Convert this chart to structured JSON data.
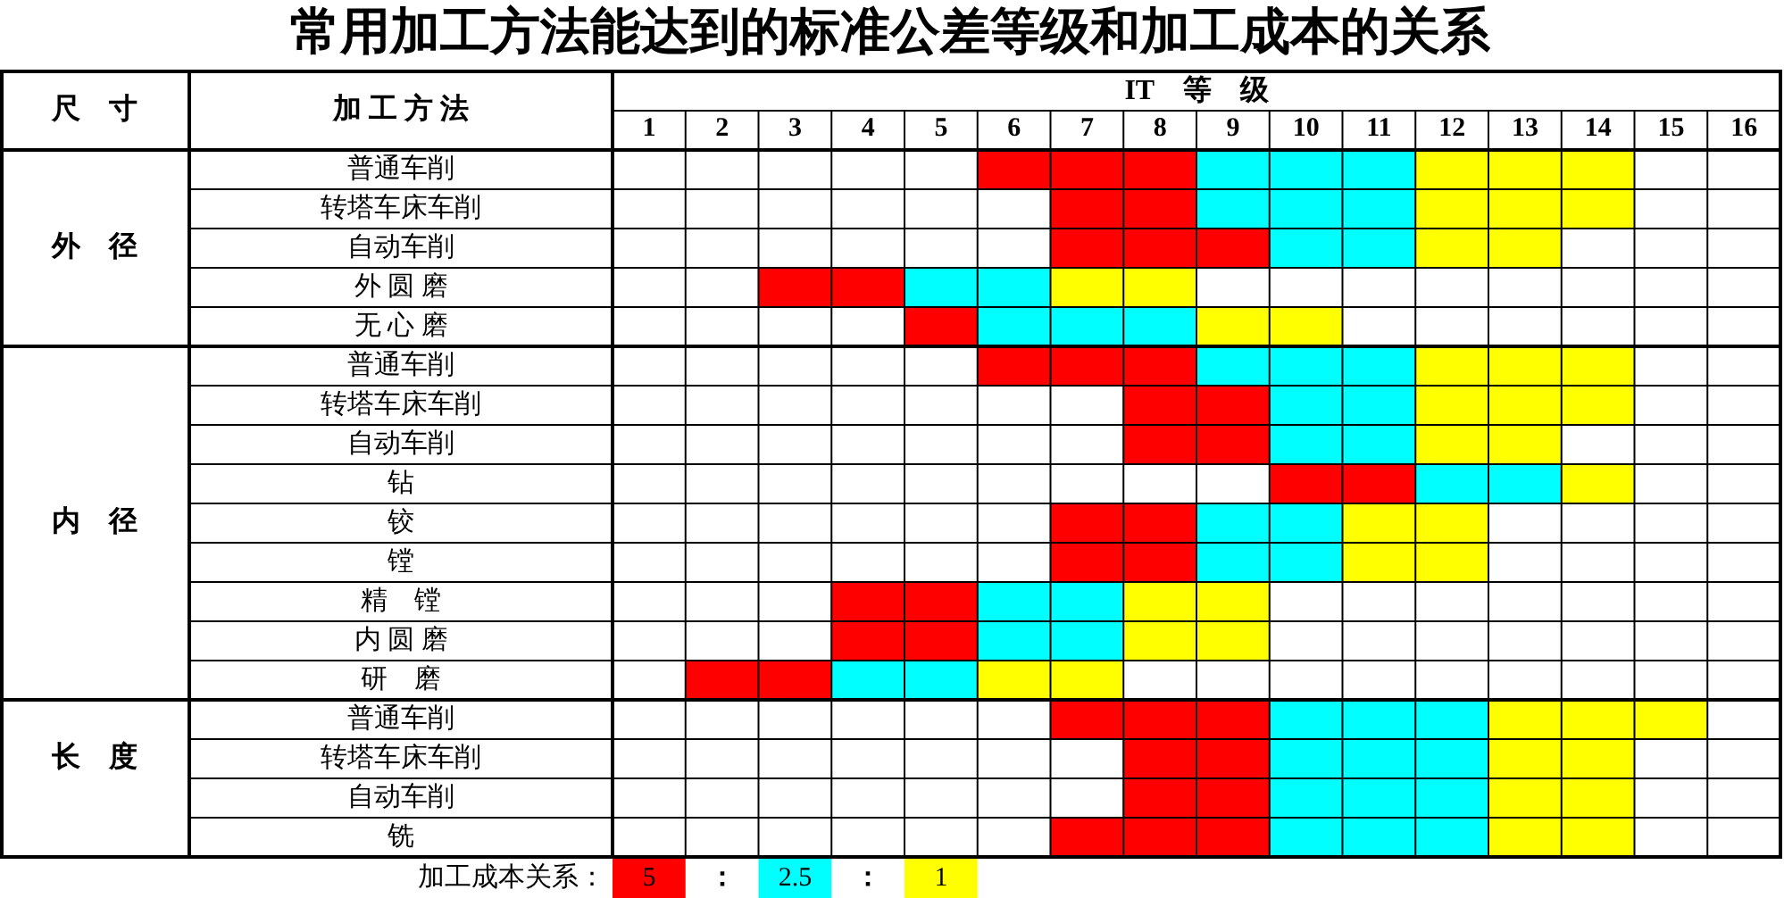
{
  "chart_data": {
    "type": "bar",
    "orientation": "horizontal",
    "title": "常用加工方法能达到的标准公差等级和加工成本的关系",
    "xlabel": "IT    等    级",
    "ylabel": "加 工 方 法",
    "categories": [
      "普通车削",
      "转塔车床车削",
      "自动车削",
      "外 圆 磨",
      "无 心 磨",
      "普通车削",
      "转塔车床车削",
      "自动车削",
      "钻",
      "铰",
      "镗",
      "精    镗",
      "内 圆 磨",
      "研    磨",
      "普通车削",
      "转塔车床车削",
      "自动车削",
      "铣"
    ],
    "y2_categories": [
      null,
      null,
      "外    径",
      null,
      null,
      null,
      null,
      null,
      null,
      "内    径",
      null,
      null,
      null,
      null,
      null,
      "长    度",
      null,
      null
    ],
    "xlim": [
      0.5,
      16.5
    ],
    "xticks": [
      1,
      2,
      3,
      4,
      5,
      6,
      7,
      8,
      9,
      10,
      11,
      12,
      13,
      14,
      15,
      16
    ],
    "series": [
      {
        "name": "5",
        "color": "#ff0000",
        "base": [
          5.5,
          6.5,
          6.5,
          2.5,
          4.5,
          5.5,
          7.5,
          7.5,
          9.5,
          6.5,
          6.5,
          3.5,
          3.5,
          1.5,
          6.5,
          7.5,
          7.5,
          6.5
        ],
        "values": [
          3,
          2,
          3,
          2,
          1,
          3,
          2,
          2,
          2,
          2,
          2,
          2,
          2,
          2,
          3,
          2,
          2,
          3
        ]
      },
      {
        "name": "2.5",
        "color": "#00ffff",
        "base": [
          8.5,
          8.5,
          9.5,
          4.5,
          5.5,
          8.5,
          9.5,
          9.5,
          11.5,
          8.5,
          8.5,
          5.5,
          5.5,
          3.5,
          9.5,
          9.5,
          9.5,
          9.5
        ],
        "values": [
          3,
          3,
          2,
          2,
          3,
          3,
          2,
          2,
          2,
          2,
          2,
          2,
          2,
          2,
          3,
          3,
          3,
          3
        ]
      },
      {
        "name": "1",
        "color": "#ffff00",
        "base": [
          11.5,
          11.5,
          11.5,
          6.5,
          8.5,
          11.5,
          11.5,
          11.5,
          13.5,
          10.5,
          10.5,
          7.5,
          7.5,
          5.5,
          12.5,
          12.5,
          12.5,
          12.5
        ],
        "values": [
          3,
          3,
          2,
          2,
          2,
          3,
          3,
          2,
          1,
          2,
          2,
          2,
          2,
          2,
          3,
          2,
          2,
          2
        ]
      }
    ],
    "legend": "bottom left",
    "legend_title": "加工成本关系：",
    "annotations": [
      "尺    寸",
      "：",
      "："
    ],
    "grid": true
  }
}
